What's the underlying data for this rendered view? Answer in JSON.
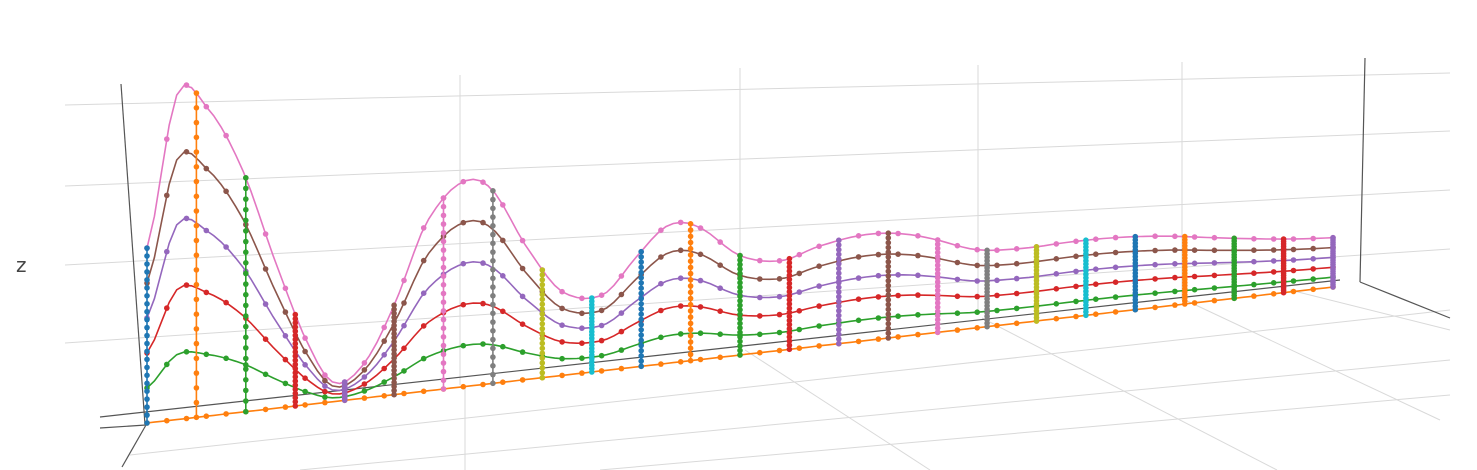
{
  "chart_data": {
    "type": "surface-3d-wireframe",
    "axis_titles": {
      "z": "z"
    },
    "grid": true,
    "along_lines": {
      "colors": [
        "#ff7f0e",
        "#2ca02c",
        "#d62728",
        "#9467bd",
        "#8c564b",
        "#e377c2"
      ],
      "levels": [
        0.0,
        0.2,
        0.4,
        0.6,
        0.8,
        1.0
      ]
    },
    "cross_lines": {
      "count": 25,
      "colors": [
        "#1f77b4",
        "#ff7f0e",
        "#2ca02c",
        "#d62728",
        "#9467bd",
        "#8c564b",
        "#e377c2",
        "#7f7f7f",
        "#bcbd22",
        "#17becf"
      ]
    },
    "profile": [
      {
        "x": 0.0,
        "z": 0.53
      },
      {
        "x": 0.025,
        "z": 1.0
      },
      {
        "x": 0.05,
        "z": 0.97
      },
      {
        "x": 0.08,
        "z": 0.78
      },
      {
        "x": 0.11,
        "z": 0.46
      },
      {
        "x": 0.14,
        "z": 0.17
      },
      {
        "x": 0.16,
        "z": 0.06
      },
      {
        "x": 0.185,
        "z": 0.13
      },
      {
        "x": 0.21,
        "z": 0.33
      },
      {
        "x": 0.235,
        "z": 0.6
      },
      {
        "x": 0.265,
        "z": 0.75
      },
      {
        "x": 0.29,
        "z": 0.73
      },
      {
        "x": 0.32,
        "z": 0.51
      },
      {
        "x": 0.35,
        "z": 0.33
      },
      {
        "x": 0.385,
        "z": 0.31
      },
      {
        "x": 0.415,
        "z": 0.47
      },
      {
        "x": 0.44,
        "z": 0.59
      },
      {
        "x": 0.465,
        "z": 0.58
      },
      {
        "x": 0.5,
        "z": 0.45
      },
      {
        "x": 0.535,
        "z": 0.42
      },
      {
        "x": 0.565,
        "z": 0.48
      },
      {
        "x": 0.6,
        "z": 0.53
      },
      {
        "x": 0.63,
        "z": 0.54
      },
      {
        "x": 0.66,
        "z": 0.51
      },
      {
        "x": 0.7,
        "z": 0.44
      },
      {
        "x": 0.74,
        "z": 0.44
      },
      {
        "x": 0.78,
        "z": 0.47
      },
      {
        "x": 0.82,
        "z": 0.49
      },
      {
        "x": 0.86,
        "z": 0.49
      },
      {
        "x": 0.9,
        "z": 0.47
      },
      {
        "x": 0.94,
        "z": 0.45
      },
      {
        "x": 0.97,
        "z": 0.44
      },
      {
        "x": 1.0,
        "z": 0.44
      }
    ]
  }
}
